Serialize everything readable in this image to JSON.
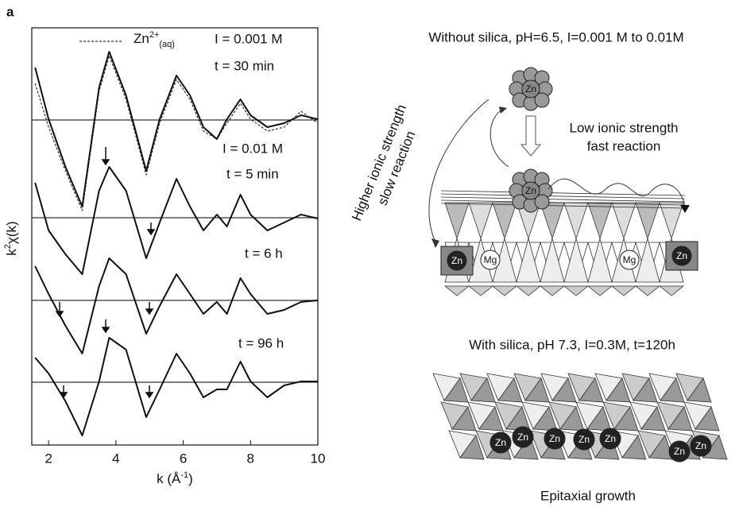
{
  "panel_label": "a",
  "chart_data": {
    "type": "line",
    "xlabel": {
      "text": "k (Å",
      "sup": "-1",
      "end": ")"
    },
    "ylabel": {
      "text": "k",
      "sup": "2",
      "end": "χ(k)"
    },
    "x": [
      1.6,
      2,
      2.5,
      3,
      3.5,
      3.8,
      4.3,
      4.9,
      5.3,
      5.8,
      6.2,
      6.6,
      7,
      7.3,
      7.7,
      8,
      8.5,
      9,
      9.5,
      10
    ],
    "xlim": [
      1.5,
      10
    ],
    "xticks": [
      2,
      4,
      6,
      8,
      10
    ],
    "ylim": [
      0,
      525
    ],
    "baselines": [
      409,
      286,
      182,
      79
    ],
    "series": [
      {
        "name": {
          "text": "Zn",
          "sup": "2+",
          "sub": "(aq)"
        },
        "color": "#333333",
        "dashed": true,
        "values": [
          455,
          400,
          345,
          295,
          445,
          490,
          435,
          340,
          405,
          460,
          435,
          395,
          385,
          405,
          430,
          410,
          395,
          400,
          420,
          405
        ]
      },
      {
        "color": "#111111",
        "label_lines": [
          "I = 0.001 M",
          "t = 30 min"
        ],
        "values": [
          475,
          410,
          350,
          300,
          450,
          495,
          440,
          345,
          410,
          465,
          440,
          400,
          385,
          410,
          435,
          415,
          400,
          405,
          415,
          410
        ]
      },
      {
        "color": "#111111",
        "label_lines": [
          "I = 0.01 M",
          "t = 5 min"
        ],
        "values": [
          330,
          270,
          240,
          215,
          320,
          350,
          320,
          235,
          280,
          335,
          300,
          270,
          290,
          275,
          315,
          290,
          270,
          280,
          290,
          285
        ]
      },
      {
        "color": "#111111",
        "label_lines": [
          "t = 6 h"
        ],
        "values": [
          225,
          190,
          150,
          115,
          200,
          235,
          215,
          140,
          175,
          215,
          190,
          165,
          180,
          165,
          210,
          190,
          165,
          170,
          180,
          182
        ]
      },
      {
        "color": "#111111",
        "label_lines": [
          "t = 96 h"
        ],
        "values": [
          110,
          90,
          55,
          12,
          80,
          135,
          120,
          35,
          70,
          115,
          90,
          60,
          70,
          70,
          105,
          80,
          60,
          75,
          80,
          80
        ]
      }
    ]
  },
  "diagram": {
    "top_title": "Without silica, pH=6.5, I=0.001 M to 0.01M",
    "fast_label": [
      "Low ionic strength",
      "fast reaction"
    ],
    "slow_label": [
      "Higher ionic strength",
      "slow reaction"
    ],
    "zn": "Zn",
    "mg": "Mg",
    "bottom_title": "With silica, pH 7.3, I=0.3M, t=120h",
    "caption": "Epitaxial growth"
  }
}
